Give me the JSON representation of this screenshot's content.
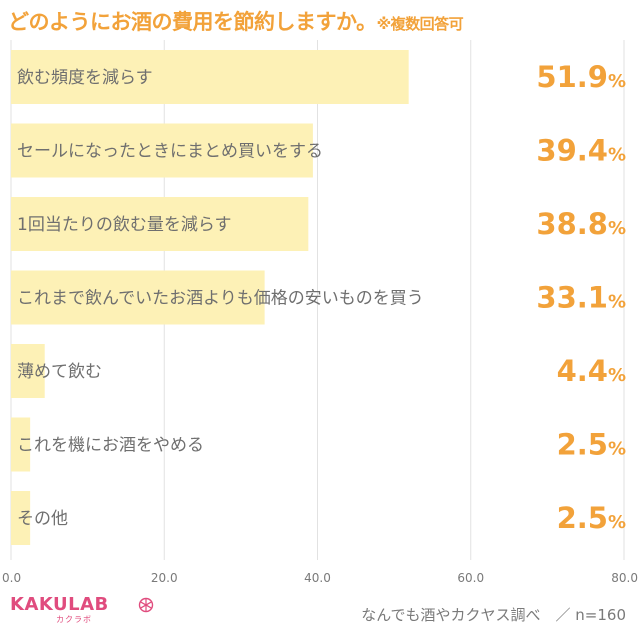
{
  "chart_data": {
    "type": "bar",
    "orientation": "horizontal",
    "title": "どのようにお酒の費用を節約しますか。",
    "title_note": "※複数回答可",
    "categories": [
      "飲む頻度を減らす",
      "セールになったときにまとめ買いをする",
      "1回当たりの飲む量を減らす",
      "これまで飲んでいたお酒よりも価格の安いものを買う",
      "薄めて飲む",
      "これを機にお酒をやめる",
      "その他"
    ],
    "values": [
      51.9,
      39.4,
      38.8,
      33.1,
      4.4,
      2.5,
      2.5
    ],
    "value_labels": [
      "51.9",
      "39.4",
      "38.8",
      "33.1",
      "4.4",
      "2.5",
      "2.5"
    ],
    "value_unit": "%",
    "xlim": [
      0,
      80
    ],
    "xticks": [
      "0.0",
      "20.0",
      "40.0",
      "60.0",
      "80.0"
    ],
    "grid": true,
    "colors": {
      "bar": "#FDF1B6",
      "accent": "#F2A23A",
      "grid": "#e2e2e2"
    }
  },
  "footer": {
    "brand": "KAKULAB",
    "brand_kana": "カクラボ",
    "source": "なんでも酒やカクヤス調べ　／ n=160",
    "logo_color": "#E04C7E"
  }
}
